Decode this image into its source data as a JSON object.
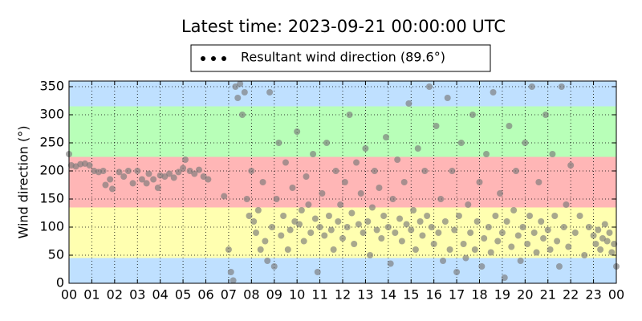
{
  "chart_data": {
    "type": "scatter",
    "title": "Latest time: 2023-09-21 00:00:00 UTC",
    "y_label": "Wind direction (°)",
    "xlim": [
      0,
      24
    ],
    "ylim": [
      0,
      360
    ],
    "yticks": [
      0,
      50,
      100,
      150,
      200,
      250,
      300,
      350
    ],
    "xticks": [
      {
        "value": 0,
        "label": "00"
      },
      {
        "value": 1,
        "label": "01"
      },
      {
        "value": 2,
        "label": "02"
      },
      {
        "value": 3,
        "label": "03"
      },
      {
        "value": 4,
        "label": "04"
      },
      {
        "value": 5,
        "label": "05"
      },
      {
        "value": 6,
        "label": "06"
      },
      {
        "value": 7,
        "label": "07"
      },
      {
        "value": 8,
        "label": "08"
      },
      {
        "value": 9,
        "label": "09"
      },
      {
        "value": 10,
        "label": "10"
      },
      {
        "value": 11,
        "label": "11"
      },
      {
        "value": 12,
        "label": "12"
      },
      {
        "value": 13,
        "label": "13"
      },
      {
        "value": 14,
        "label": "14"
      },
      {
        "value": 15,
        "label": "15"
      },
      {
        "value": 16,
        "label": "16"
      },
      {
        "value": 17,
        "label": "17"
      },
      {
        "value": 18,
        "label": "18"
      },
      {
        "value": 19,
        "label": "19"
      },
      {
        "value": 20,
        "label": "20"
      },
      {
        "value": 21,
        "label": "21"
      },
      {
        "value": 22,
        "label": "22"
      },
      {
        "value": 23,
        "label": "23"
      },
      {
        "value": 24,
        "label": "00"
      }
    ],
    "grid": true,
    "legend": "top",
    "bands": [
      {
        "from": 0,
        "to": 45,
        "color": "#bfe0ff"
      },
      {
        "from": 45,
        "to": 135,
        "color": "#ffffb0"
      },
      {
        "from": 135,
        "to": 225,
        "color": "#ffb6b6"
      },
      {
        "from": 225,
        "to": 315,
        "color": "#b8ffb8"
      },
      {
        "from": 315,
        "to": 360,
        "color": "#bfe0ff"
      }
    ],
    "x": [
      0.0,
      0.1,
      0.3,
      0.5,
      0.7,
      0.9,
      1.1,
      1.3,
      1.5,
      1.6,
      1.8,
      1.9,
      2.2,
      2.4,
      2.6,
      2.8,
      3.0,
      3.2,
      3.4,
      3.5,
      3.7,
      3.9,
      4.0,
      4.2,
      4.4,
      4.6,
      4.8,
      5.0,
      5.1,
      5.3,
      5.5,
      5.7,
      5.9,
      6.1,
      6.8,
      7.0,
      7.1,
      7.2,
      7.3,
      7.4,
      7.5,
      7.6,
      7.7,
      7.8,
      7.9,
      8.0,
      8.1,
      8.2,
      8.3,
      8.4,
      8.5,
      8.6,
      8.7,
      8.8,
      8.9,
      9.0,
      9.1,
      9.2,
      9.3,
      9.4,
      9.5,
      9.6,
      9.7,
      9.8,
      9.9,
      10.0,
      10.1,
      10.2,
      10.3,
      10.4,
      10.5,
      10.6,
      10.7,
      10.8,
      10.9,
      11.0,
      11.1,
      11.2,
      11.3,
      11.4,
      11.5,
      11.6,
      11.7,
      11.8,
      11.9,
      12.0,
      12.1,
      12.2,
      12.3,
      12.4,
      12.5,
      12.6,
      12.7,
      12.8,
      12.9,
      13.0,
      13.1,
      13.2,
      13.3,
      13.4,
      13.5,
      13.6,
      13.7,
      13.8,
      13.9,
      14.0,
      14.1,
      14.2,
      14.3,
      14.4,
      14.5,
      14.6,
      14.7,
      14.8,
      14.9,
      15.0,
      15.1,
      15.2,
      15.3,
      15.4,
      15.5,
      15.6,
      15.7,
      15.8,
      15.9,
      16.0,
      16.1,
      16.2,
      16.3,
      16.4,
      16.5,
      16.6,
      16.7,
      16.8,
      16.9,
      17.0,
      17.1,
      17.2,
      17.3,
      17.4,
      17.5,
      17.6,
      17.7,
      17.8,
      17.9,
      18.0,
      18.1,
      18.2,
      18.3,
      18.4,
      18.5,
      18.6,
      18.7,
      18.8,
      18.9,
      19.0,
      19.1,
      19.2,
      19.3,
      19.4,
      19.5,
      19.6,
      19.7,
      19.8,
      19.9,
      20.0,
      20.1,
      20.2,
      20.3,
      20.4,
      20.5,
      20.6,
      20.7,
      20.8,
      20.9,
      21.0,
      21.1,
      21.2,
      21.3,
      21.4,
      21.5,
      21.6,
      21.7,
      21.8,
      21.9,
      22.0,
      22.2,
      22.4,
      22.6,
      22.8,
      23.0,
      23.1,
      23.2,
      23.3,
      23.4,
      23.5,
      23.6,
      23.7,
      23.8,
      23.9,
      24.0
    ],
    "series": [
      {
        "name": "Resultant wind direction (89.6°)",
        "color": "#7a7a7a",
        "values": [
          230,
          210,
          208,
          212,
          213,
          210,
          200,
          198,
          200,
          175,
          185,
          168,
          198,
          190,
          200,
          178,
          200,
          185,
          178,
          195,
          185,
          170,
          192,
          190,
          195,
          188,
          198,
          205,
          220,
          200,
          195,
          202,
          190,
          185,
          155,
          60,
          20,
          5,
          350,
          330,
          355,
          300,
          340,
          150,
          120,
          200,
          110,
          90,
          130,
          60,
          180,
          75,
          40,
          340,
          100,
          30,
          150,
          250,
          85,
          120,
          215,
          60,
          95,
          170,
          110,
          270,
          105,
          130,
          75,
          190,
          140,
          90,
          230,
          115,
          20,
          100,
          160,
          85,
          250,
          120,
          95,
          60,
          200,
          110,
          140,
          80,
          180,
          100,
          300,
          125,
          70,
          215,
          105,
          160,
          90,
          240,
          110,
          50,
          135,
          200,
          95,
          170,
          80,
          120,
          260,
          100,
          35,
          150,
          90,
          220,
          115,
          75,
          180,
          105,
          320,
          95,
          130,
          60,
          240,
          110,
          85,
          200,
          120,
          350,
          100,
          70,
          280,
          90,
          150,
          40,
          110,
          330,
          60,
          200,
          95,
          20,
          120,
          250,
          70,
          45,
          140,
          90,
          300,
          60,
          110,
          180,
          30,
          80,
          230,
          100,
          55,
          340,
          120,
          75,
          160,
          90,
          10,
          110,
          280,
          65,
          130,
          200,
          85,
          40,
          100,
          250,
          70,
          120,
          350,
          90,
          55,
          180,
          110,
          80,
          300,
          95,
          60,
          230,
          120,
          75,
          30,
          350,
          100,
          140,
          65,
          210,
          90,
          120,
          50,
          100,
          85,
          70,
          95,
          60,
          80,
          105,
          75,
          90,
          55,
          70,
          30
        ]
      }
    ]
  }
}
